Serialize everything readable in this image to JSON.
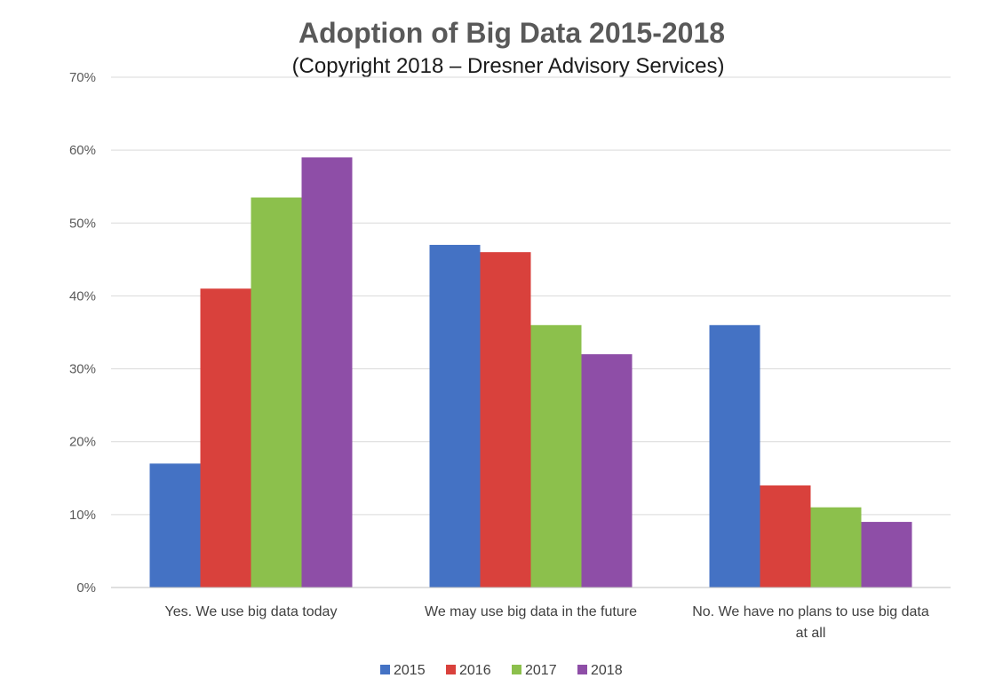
{
  "chart_data": {
    "type": "bar",
    "title": "Adoption of Big Data 2015-2018",
    "subtitle": "(Copyright 2018 – Dresner Advisory Services)",
    "categories": [
      [
        "Yes. We use big data today"
      ],
      [
        "We may use big data in the future"
      ],
      [
        "No. We have no plans to use big data",
        "at all"
      ]
    ],
    "series": [
      {
        "name": "2015",
        "color": "#4472C4",
        "values": [
          17,
          47,
          36
        ]
      },
      {
        "name": "2016",
        "color": "#D9413C",
        "values": [
          41,
          46,
          14
        ]
      },
      {
        "name": "2017",
        "color": "#8CC04C",
        "values": [
          53.5,
          36,
          11
        ]
      },
      {
        "name": "2018",
        "color": "#8E4EA7",
        "values": [
          59,
          32,
          9
        ]
      }
    ],
    "yticks": [
      "0%",
      "10%",
      "20%",
      "30%",
      "40%",
      "50%",
      "60%",
      "70%"
    ],
    "ylim": [
      0,
      70
    ],
    "ylabel": "",
    "xlabel": "",
    "grid": true,
    "legend_position": "bottom-center"
  }
}
